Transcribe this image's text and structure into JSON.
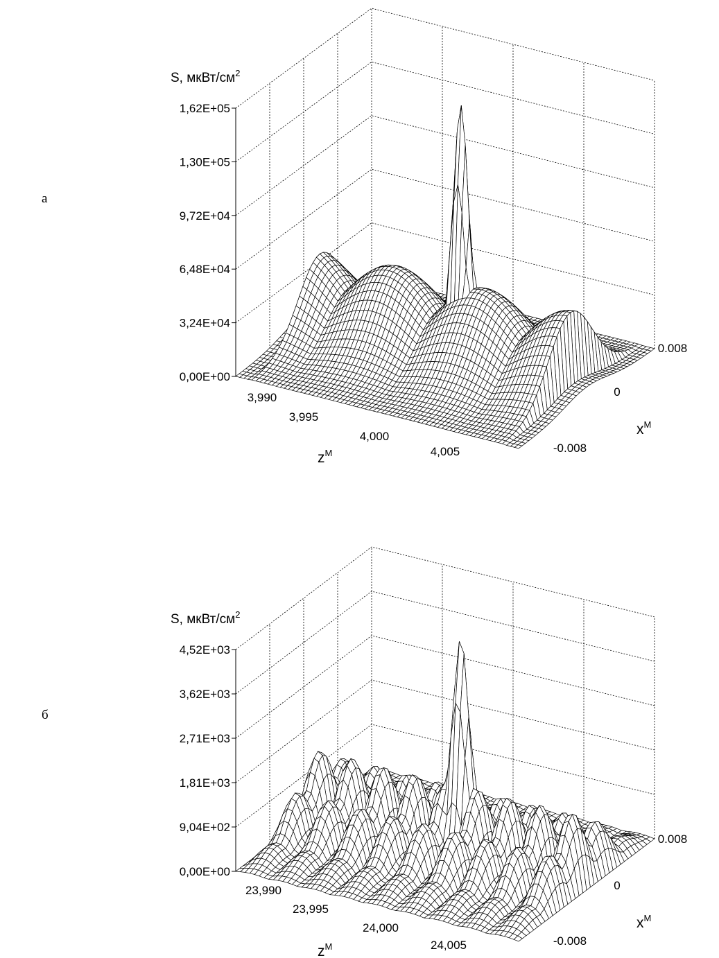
{
  "chart_data": [
    {
      "type": "surface",
      "panel_label": "а",
      "zlabel": "S, мкВт/см",
      "zlabel_sup": "2",
      "xlabel": "z",
      "xlabel_sup": "М",
      "ylabel": "x",
      "ylabel_sup": "М",
      "z_ticks": [
        "0,00E+00",
        "3,24E+04",
        "6,48E+04",
        "9,72E+04",
        "1,30E+05",
        "1,62E+05"
      ],
      "zlim": [
        0,
        162000
      ],
      "x_ticks": [
        "3,990",
        "3,995",
        "4,000",
        "4,005"
      ],
      "xlim": [
        3.99,
        4.008
      ],
      "y_ticks": [
        "-0.008",
        "0",
        "0.008"
      ],
      "ylim": [
        -0.008,
        0.008
      ],
      "peak": {
        "z": 4.0,
        "x": 0.0,
        "S": 158000
      },
      "side_lobe_level": 55000,
      "grid": true
    },
    {
      "type": "surface",
      "panel_label": "б",
      "zlabel": "S, мкВт/см",
      "zlabel_sup": "2",
      "xlabel": "z",
      "xlabel_sup": "М",
      "ylabel": "x",
      "ylabel_sup": "М",
      "z_ticks": [
        "0,00E+00",
        "9,04E+02",
        "1,81E+03",
        "2,71E+03",
        "3,62E+03",
        "4,52E+03"
      ],
      "zlim": [
        0,
        4520
      ],
      "x_ticks": [
        "23,990",
        "23,995",
        "24,000",
        "24,005"
      ],
      "xlim": [
        23.99,
        24.008
      ],
      "y_ticks": [
        "-0.008",
        "0",
        "0.008"
      ],
      "ylim": [
        -0.008,
        0.008
      ],
      "peak": {
        "z": 24.0,
        "x": 0.0,
        "S": 4500
      },
      "side_lobe_level": 1750,
      "grid": true
    }
  ]
}
